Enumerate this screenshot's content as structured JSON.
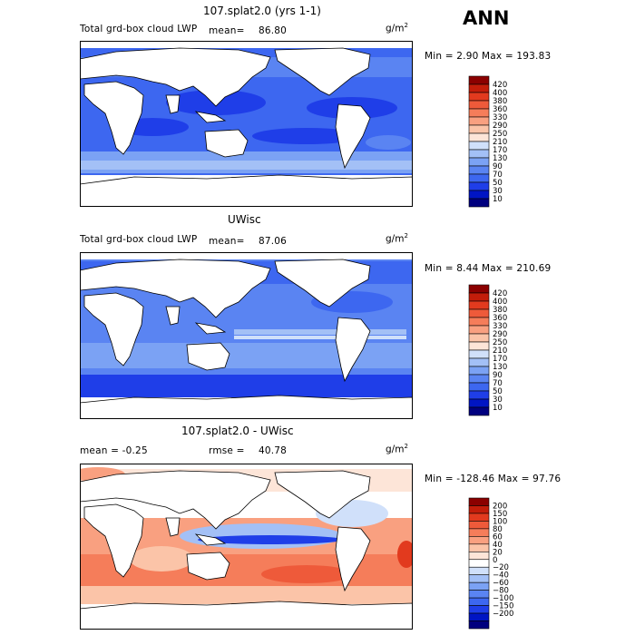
{
  "season": "ANN",
  "units_base": "g/m",
  "units_exp": "2",
  "panels": [
    {
      "id": "model",
      "title": "107.splat2.0 (yrs 1-1)",
      "left_label": "Total grd-box cloud LWP",
      "stat_label": "mean=",
      "stat_value": "86.80",
      "minmax": "Min =   2.90 Max = 193.83",
      "colorbar_colors": [
        "#00007f",
        "#0015c4",
        "#1f3ee8",
        "#3d67f0",
        "#5a84f2",
        "#7ba2f4",
        "#a3c0f6",
        "#d0e0fa",
        "#fde5d8",
        "#fbc4a8",
        "#f9a080",
        "#f57d5a",
        "#ee5a3a",
        "#e23a1e",
        "#c31d0a",
        "#8b0000"
      ],
      "colorbar_labels": [
        "420",
        "400",
        "380",
        "360",
        "330",
        "290",
        "250",
        "210",
        "170",
        "130",
        "90",
        "70",
        "50",
        "30",
        "10"
      ]
    },
    {
      "id": "obs",
      "title": "UWisc",
      "left_label": "Total grd-box cloud LWP",
      "stat_label": "mean=",
      "stat_value": "87.06",
      "minmax": "Min =   8.44 Max = 210.69",
      "colorbar_colors": [
        "#00007f",
        "#0015c4",
        "#1f3ee8",
        "#3d67f0",
        "#5a84f2",
        "#7ba2f4",
        "#a3c0f6",
        "#d0e0fa",
        "#fde5d8",
        "#fbc4a8",
        "#f9a080",
        "#f57d5a",
        "#ee5a3a",
        "#e23a1e",
        "#c31d0a",
        "#8b0000"
      ],
      "colorbar_labels": [
        "420",
        "400",
        "380",
        "360",
        "330",
        "290",
        "250",
        "210",
        "170",
        "130",
        "90",
        "70",
        "50",
        "30",
        "10"
      ]
    },
    {
      "id": "diff",
      "title": "107.splat2.0 - UWisc",
      "left_label": "mean =   -0.25",
      "stat_label": "rmse =",
      "stat_value": "40.78",
      "minmax": "Min = -128.46 Max =  97.76",
      "colorbar_colors": [
        "#00007f",
        "#0015c4",
        "#1f3ee8",
        "#3d67f0",
        "#5a84f2",
        "#7ba2f4",
        "#a3c0f6",
        "#d0e0fa",
        "#ffffff",
        "#fde5d8",
        "#fbc4a8",
        "#f9a080",
        "#f57d5a",
        "#ee5a3a",
        "#e23a1e",
        "#c31d0a",
        "#8b0000"
      ],
      "colorbar_labels": [
        "200",
        "150",
        "100",
        "80",
        "60",
        "40",
        "20",
        "0",
        "−20",
        "−40",
        "−60",
        "−80",
        "−100",
        "−150",
        "−200"
      ]
    }
  ]
}
